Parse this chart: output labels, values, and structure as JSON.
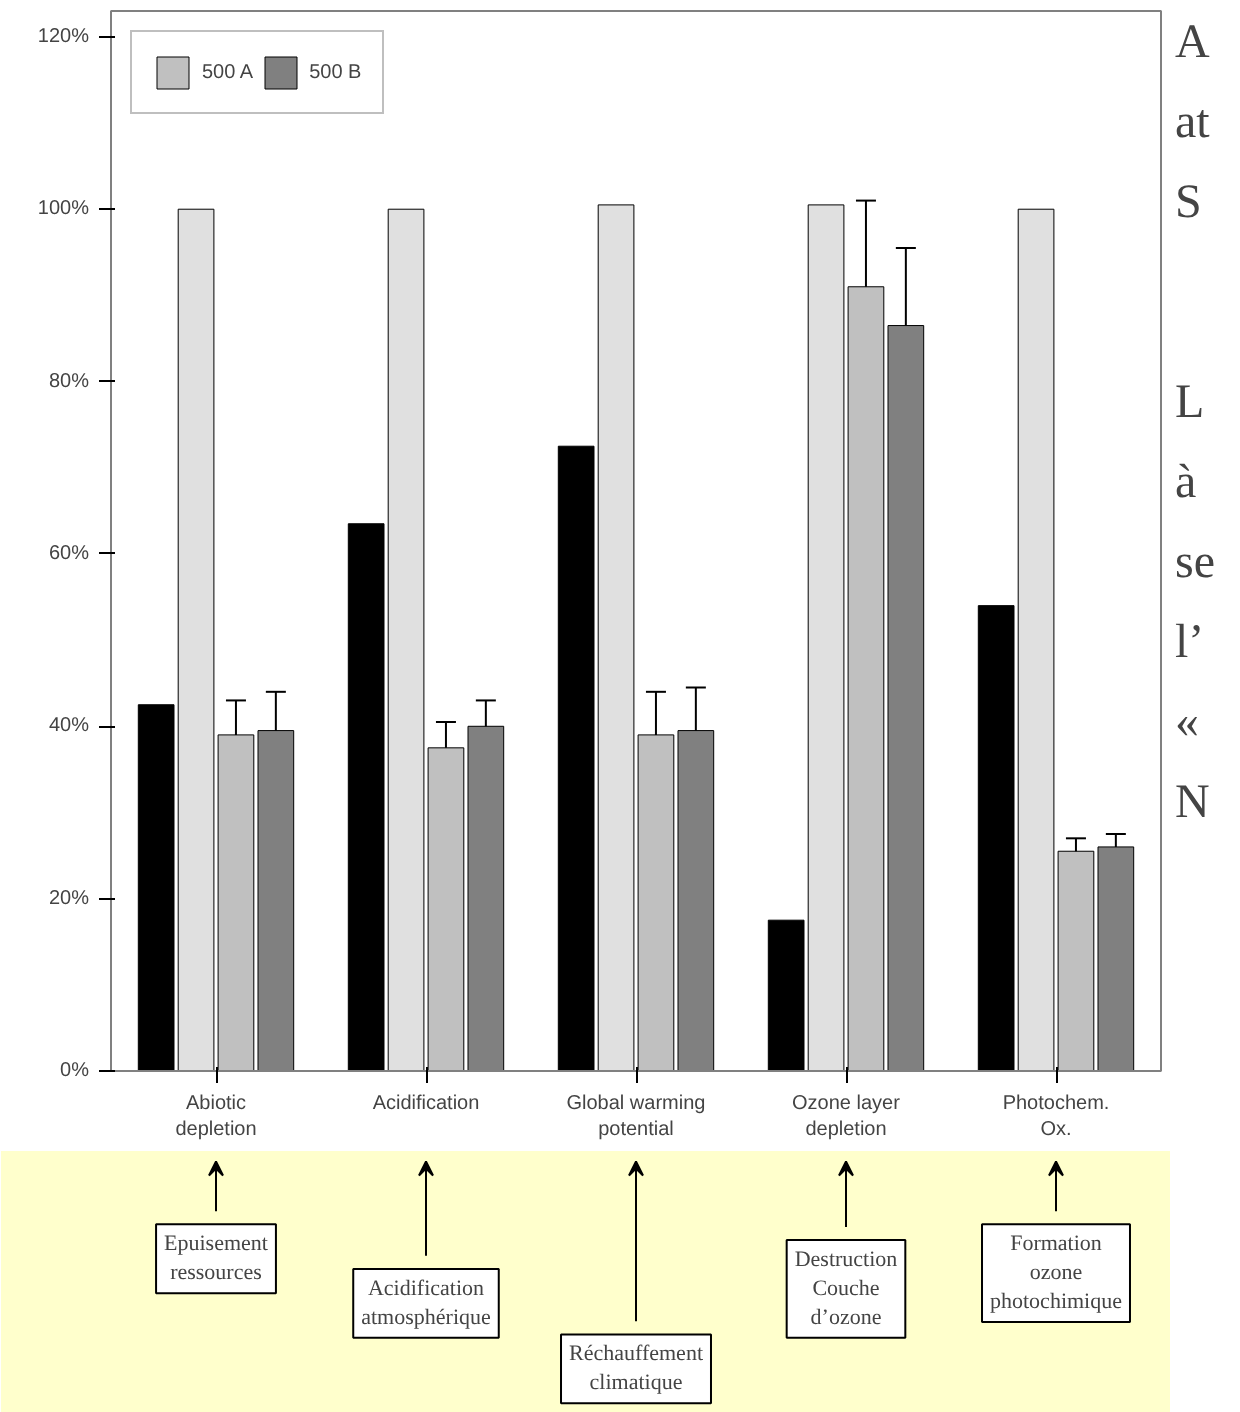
{
  "chart_data": {
    "type": "bar",
    "categories": [
      "Abiotic\ndepletion",
      "Acidification",
      "Global warming\npotential",
      "Ozone layer\ndepletion",
      "Photochem.\nOx."
    ],
    "series": [
      {
        "color": "#000000",
        "values": [
          42.5,
          63.5,
          72.5,
          17.5,
          54
        ]
      },
      {
        "color": "#e0e0e0",
        "values": [
          100,
          100,
          100.5,
          100.5,
          100
        ]
      },
      {
        "name": "500 A",
        "color": "#c0c0c0",
        "values": [
          39,
          37.5,
          39,
          91,
          25.5
        ],
        "errors": [
          4,
          3,
          5,
          10,
          1.5
        ]
      },
      {
        "name": "500 B",
        "color": "#808080",
        "values": [
          39.5,
          40,
          39.5,
          86.5,
          26
        ],
        "errors": [
          4.5,
          3,
          5,
          9,
          1.5
        ]
      }
    ],
    "ylim": [
      0,
      123
    ],
    "yticks": [
      {
        "value": 0,
        "label": "0%"
      },
      {
        "value": 20,
        "label": "20%"
      },
      {
        "value": 40,
        "label": "40%"
      },
      {
        "value": 60,
        "label": "60%"
      },
      {
        "value": 80,
        "label": "80%"
      },
      {
        "value": 100,
        "label": "100%"
      },
      {
        "value": 120,
        "label": "120%"
      }
    ],
    "grid": false,
    "legend": "top left",
    "annotations": [
      "Epuisement\nressources",
      "Acidification\natmosphérique",
      "Réchauffement\nclimatique",
      "Destruction\nCouche\nd’ozone",
      "Formation\nozone\nphotochimique",
      "A",
      "at",
      "S",
      "L",
      "à",
      "se",
      "l’",
      "«",
      "N"
    ]
  }
}
